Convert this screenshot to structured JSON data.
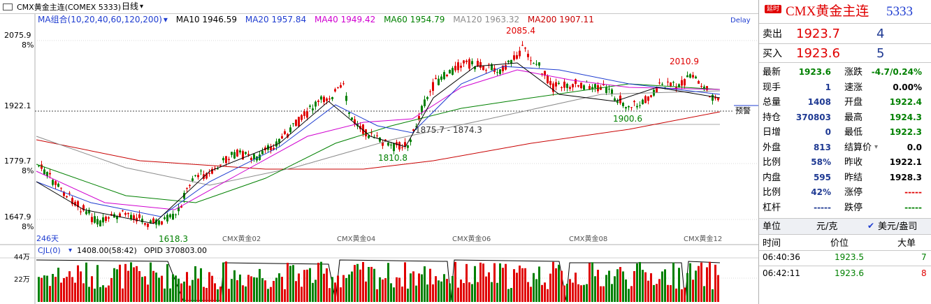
{
  "toolbar": {
    "title": "CMX黄金主连(COMEX 5333)",
    "period": "日线",
    "delay": "Delay"
  },
  "ma_bar": {
    "group_label": "MA组合(10,20,40,60,120,200)",
    "ma10": "MA10 1946.59",
    "ma20": "MA20 1957.84",
    "ma40": "MA40 1949.42",
    "ma60": "MA60 1954.79",
    "ma120": "MA120 1963.32",
    "ma200": "MA200 1907.11"
  },
  "colors": {
    "ma10": "#000000",
    "ma20": "#1e3cd0",
    "ma40": "#d000d0",
    "ma60": "#008000",
    "ma120": "#8c8c8c",
    "ma200": "#c80000",
    "up": "#e00000",
    "down": "#008000"
  },
  "price_axis": {
    "labels": [
      "2075.9",
      "8%",
      "1922.1",
      "1779.7",
      "8%",
      "1647.9",
      "8%"
    ]
  },
  "annotations": {
    "high": "2085.4",
    "h2": "2010.9",
    "low1": "1618.3",
    "low2": "1810.8",
    "low3": "1900.6",
    "gap": "1875.7 - 1874.3",
    "alert": "预警",
    "days": "246天"
  },
  "x_axis": {
    "labels": [
      "CMX黄金02",
      "CMX黄金04",
      "CMX黄金06",
      "CMX黄金08",
      "CMX黄金12"
    ]
  },
  "volume_bar": {
    "label": "CJL(0)",
    "vol": "1408.00(58:42)",
    "opid": "OPID 370803.00",
    "axis": [
      "44万",
      "22万"
    ]
  },
  "panel": {
    "badge": "延时",
    "title": "CMX黄金主连",
    "code": "5333",
    "sell_label": "卖出",
    "sell_price": "1923.7",
    "sell_vol": "4",
    "buy_label": "买入",
    "buy_price": "1923.6",
    "buy_vol": "5",
    "stats": [
      {
        "l1": "最新",
        "v1": "1923.6",
        "c1": "green",
        "l2": "涨跌",
        "v2": "-4.7/0.24%",
        "c2": "green"
      },
      {
        "l1": "现手",
        "v1": "1",
        "c1": "blue",
        "l2": "速涨",
        "v2": "0.00%",
        "c2": "black"
      },
      {
        "l1": "总量",
        "v1": "1408",
        "c1": "blue",
        "l2": "开盘",
        "v2": "1922.4",
        "c2": "green"
      },
      {
        "l1": "持仓",
        "v1": "370803",
        "c1": "blue",
        "l2": "最高",
        "v2": "1924.3",
        "c2": "green"
      },
      {
        "l1": "日增",
        "v1": "0",
        "c1": "blue",
        "l2": "最低",
        "v2": "1922.3",
        "c2": "green"
      },
      {
        "l1": "外盘",
        "v1": "813",
        "c1": "blue",
        "l2": "结算价",
        "v2": "0.0",
        "c2": "black"
      },
      {
        "l1": "比例",
        "v1": "58%",
        "c1": "blue",
        "l2": "昨收",
        "v2": "1922.1",
        "c2": "black"
      },
      {
        "l1": "内盘",
        "v1": "595",
        "c1": "blue",
        "l2": "昨结",
        "v2": "1928.3",
        "c2": "black"
      },
      {
        "l1": "比例",
        "v1": "42%",
        "c1": "blue",
        "l2": "涨停",
        "v2": "-----",
        "c2": "red"
      },
      {
        "l1": "杠杆",
        "v1": "-----",
        "c1": "blue",
        "l2": "跌停",
        "v2": "-----",
        "c2": "green"
      }
    ],
    "unit_label": "单位",
    "unit_value": "元/克",
    "unit_option": "美元/盎司",
    "trade_headers": [
      "时间",
      "价位",
      "大单"
    ],
    "trades": [
      {
        "time": "06:40:36",
        "price": "1923.5",
        "size": "7"
      },
      {
        "time": "06:42:11",
        "price": "1923.6",
        "size": "8"
      }
    ]
  }
}
